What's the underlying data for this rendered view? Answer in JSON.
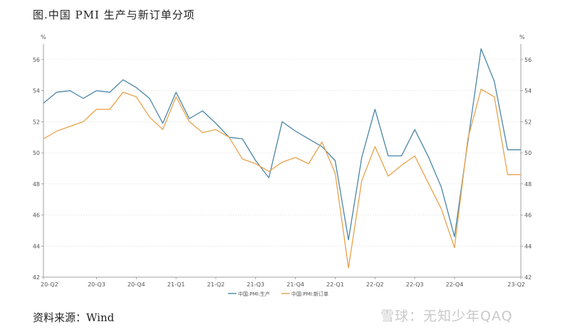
{
  "figure_title": "图.中国 PMI 生产与新订单分项",
  "source_label": "资料来源：Wind",
  "watermark": "雪球：无知少年QAQ",
  "chart_data": {
    "type": "line",
    "title": "",
    "xlabel": "",
    "ylabel": "%",
    "ylabel_right": "%",
    "ylim": [
      42,
      57
    ],
    "yticks": [
      42,
      44,
      46,
      48,
      50,
      52,
      54,
      56
    ],
    "x_tick_labels": [
      "20-Q2",
      "20-Q3",
      "20-Q4",
      "21-Q1",
      "21-Q2",
      "21-Q3",
      "21-Q4",
      "22-Q1",
      "22-Q2",
      "22-Q3",
      "22-Q4",
      "23-Q2"
    ],
    "x_tick_positions": [
      0,
      4,
      7,
      10,
      13,
      16,
      19,
      22,
      25,
      28,
      31,
      36
    ],
    "x_count": 37,
    "grid": "horizontal-dotted",
    "legend_position": "bottom-center",
    "colors": {
      "production": "#4a86a8",
      "new_orders": "#e8a24c"
    },
    "series": [
      {
        "name": "中国:PMI:生产",
        "values": [
          53.2,
          53.9,
          54.0,
          53.5,
          54.0,
          53.9,
          54.7,
          54.2,
          53.5,
          51.9,
          53.9,
          52.2,
          52.7,
          51.9,
          51.0,
          50.9,
          49.5,
          48.4,
          52.0,
          51.4,
          50.9,
          50.4,
          49.5,
          44.4,
          49.7,
          52.8,
          49.8,
          49.8,
          51.5,
          49.8,
          47.8,
          44.6,
          50.7,
          56.7,
          54.6,
          50.2,
          50.2
        ]
      },
      {
        "name": "中国:PMI:新订单",
        "values": [
          50.9,
          51.4,
          51.7,
          52.0,
          52.8,
          52.8,
          53.9,
          53.6,
          52.3,
          51.5,
          53.6,
          52.0,
          51.3,
          51.5,
          51.0,
          49.6,
          49.3,
          48.8,
          49.4,
          49.7,
          49.3,
          50.7,
          48.7,
          42.6,
          48.2,
          50.4,
          48.5,
          49.2,
          49.8,
          48.1,
          46.4,
          43.9,
          50.9,
          54.1,
          53.6,
          48.6,
          48.6
        ]
      }
    ]
  }
}
